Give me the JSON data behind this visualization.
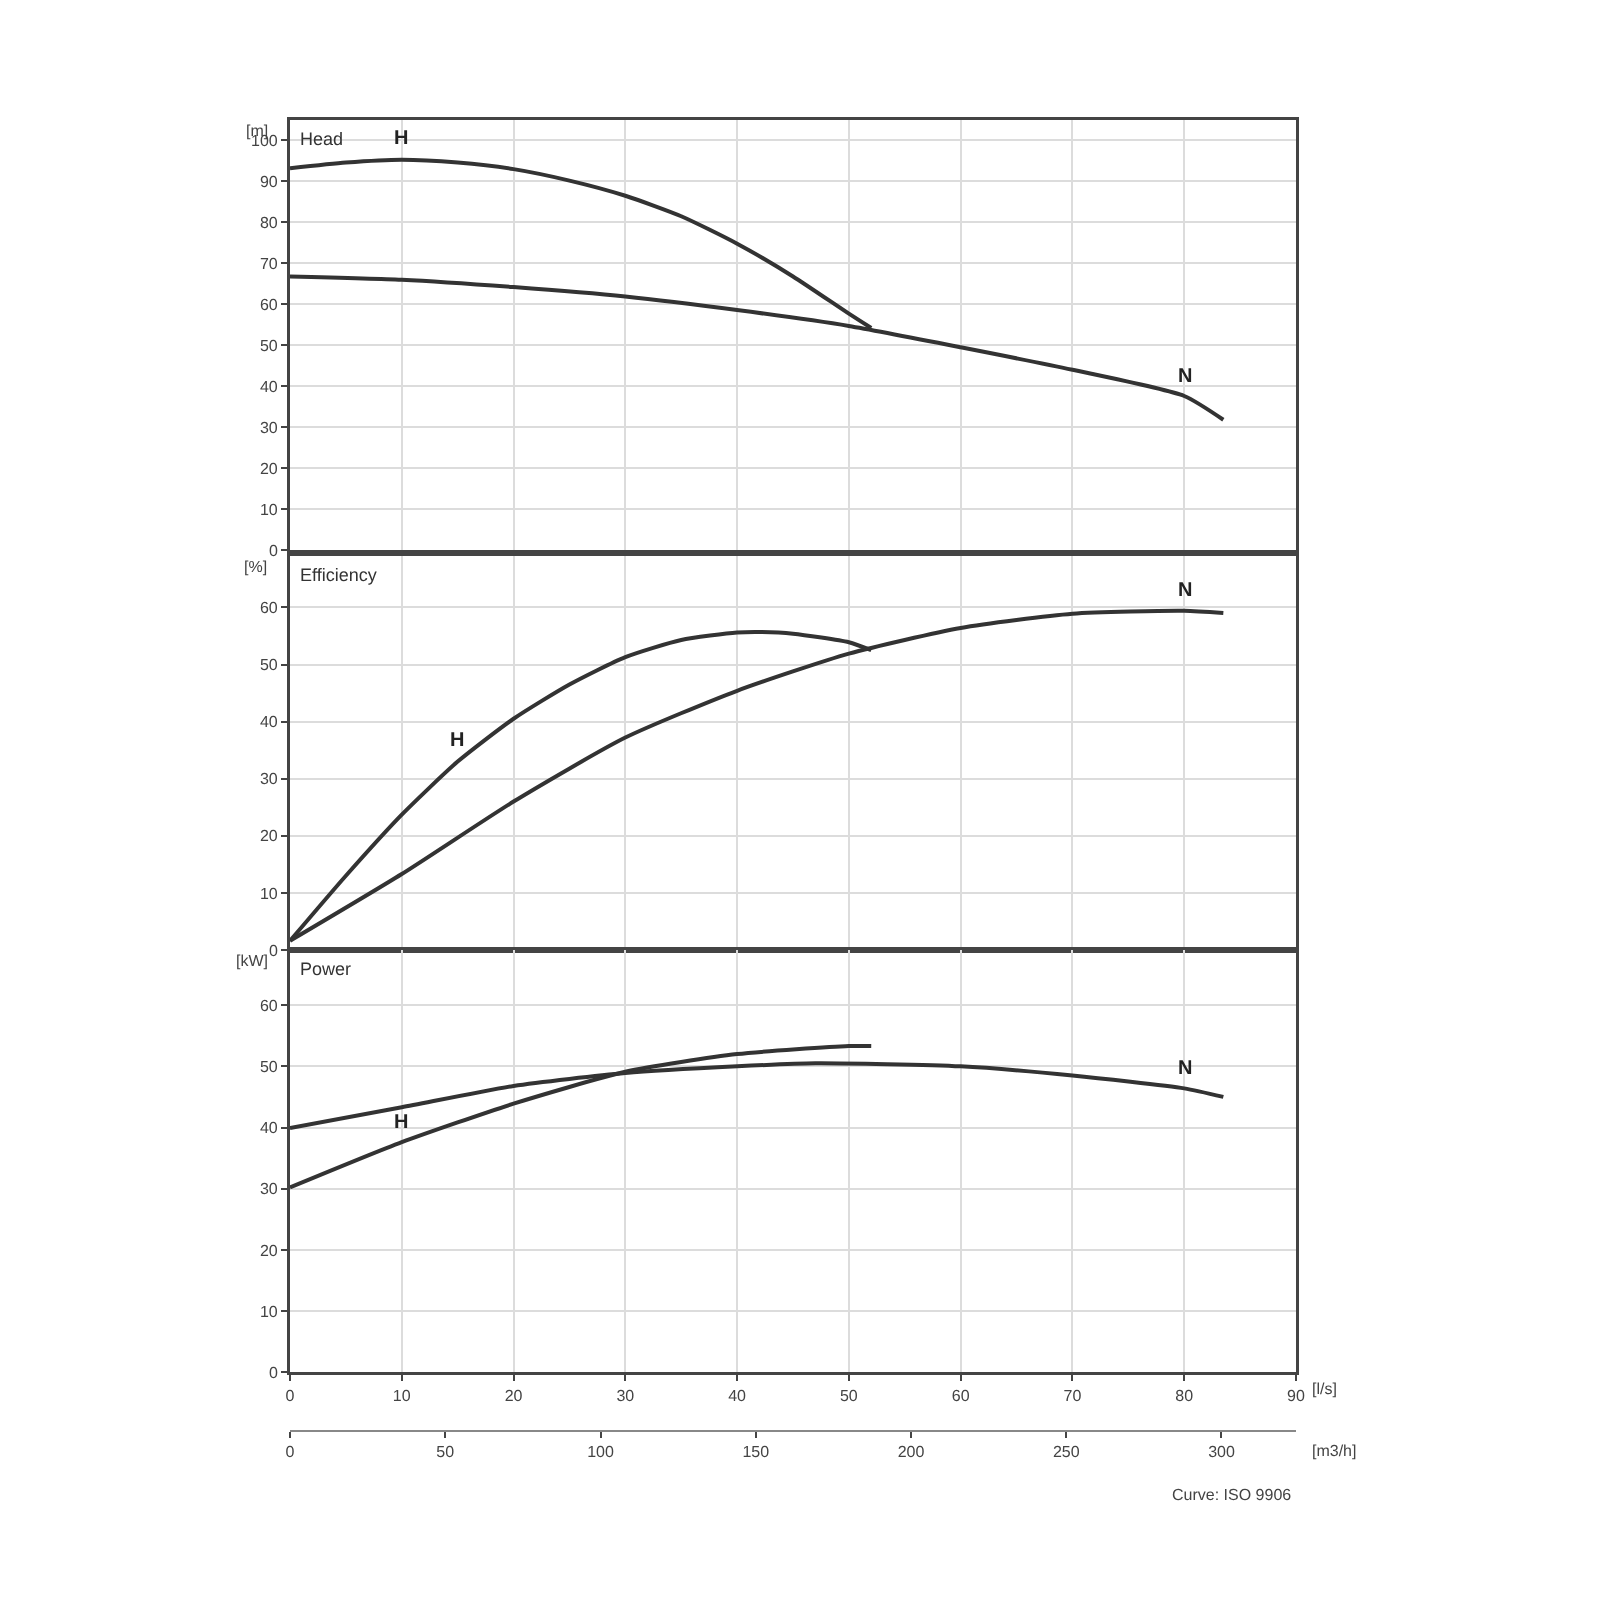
{
  "chart_data": [
    {
      "type": "line",
      "title": "Head",
      "ylabel": "[m]",
      "xlim": [
        0,
        90
      ],
      "xticks": [
        0,
        10,
        20,
        30,
        40,
        50,
        60,
        70,
        80,
        90
      ],
      "ylim": [
        0,
        105
      ],
      "yticks": [
        0,
        10,
        20,
        30,
        40,
        50,
        60,
        70,
        80,
        90,
        100
      ],
      "grid": true,
      "tick_labels": "y",
      "series": [
        {
          "name": "H",
          "color": "#333333",
          "x": [
            0,
            5,
            10,
            15,
            20,
            25,
            30,
            35,
            40,
            45,
            50,
            52
          ],
          "values": [
            93.2,
            94.6,
            95.3,
            94.6,
            93,
            90.2,
            86.5,
            81.5,
            74.8,
            66.8,
            57.7,
            54.2
          ]
        },
        {
          "name": "N",
          "color": "#333333",
          "x": [
            0,
            10,
            20,
            30,
            40,
            50,
            60,
            70,
            80,
            83.5
          ],
          "values": [
            66.8,
            66,
            64.2,
            61.9,
            58.6,
            54.7,
            49.5,
            44,
            37.6,
            31.8
          ]
        }
      ]
    },
    {
      "type": "line",
      "title": "Efficiency",
      "ylabel": "[%]",
      "xlim": [
        0,
        90
      ],
      "xticks": [
        0,
        10,
        20,
        30,
        40,
        50,
        60,
        70,
        80,
        90
      ],
      "ylim": [
        0,
        69
      ],
      "yticks": [
        0,
        10,
        20,
        30,
        40,
        50,
        60
      ],
      "grid": true,
      "tick_labels": "y",
      "series": [
        {
          "name": "H",
          "color": "#333333",
          "x": [
            0,
            5,
            10,
            15,
            20,
            25,
            30,
            35,
            40,
            42,
            45,
            50,
            52
          ],
          "values": [
            1.6,
            13,
            23.7,
            33,
            40.5,
            46.5,
            51.3,
            54.3,
            55.6,
            55.7,
            55.4,
            53.9,
            52.5
          ]
        },
        {
          "name": "N",
          "color": "#333333",
          "x": [
            0,
            10,
            20,
            30,
            40,
            50,
            60,
            70,
            80,
            83.5
          ],
          "values": [
            1.6,
            13.3,
            26,
            37.2,
            45.4,
            51.9,
            56.4,
            58.9,
            59.4,
            59
          ]
        }
      ]
    },
    {
      "type": "line",
      "title": "Power",
      "ylabel": "[kW]",
      "xlabel": "[l/s]",
      "x2label": "[m3/h]",
      "xlim": [
        0,
        90
      ],
      "xticks": [
        0,
        10,
        20,
        30,
        40,
        50,
        60,
        70,
        80,
        90
      ],
      "x2lim": [
        0,
        324
      ],
      "x2ticks": [
        0,
        50,
        100,
        150,
        200,
        250,
        300
      ],
      "ylim": [
        0,
        69
      ],
      "yticks": [
        0,
        10,
        20,
        30,
        40,
        50,
        60
      ],
      "grid": true,
      "annotations": [
        "Curve: ISO 9906"
      ],
      "series": [
        {
          "name": "H",
          "color": "#333333",
          "x": [
            0,
            10,
            20,
            30,
            40,
            50,
            52
          ],
          "values": [
            30.2,
            37.6,
            43.9,
            49.1,
            52,
            53.3,
            53.3
          ]
        },
        {
          "name": "N",
          "color": "#333333",
          "x": [
            0,
            10,
            20,
            30,
            40,
            47,
            60,
            70,
            80,
            83.5
          ],
          "values": [
            39.9,
            43.3,
            46.8,
            48.9,
            50,
            50.5,
            50,
            48.5,
            46.4,
            45
          ]
        }
      ]
    }
  ]
}
